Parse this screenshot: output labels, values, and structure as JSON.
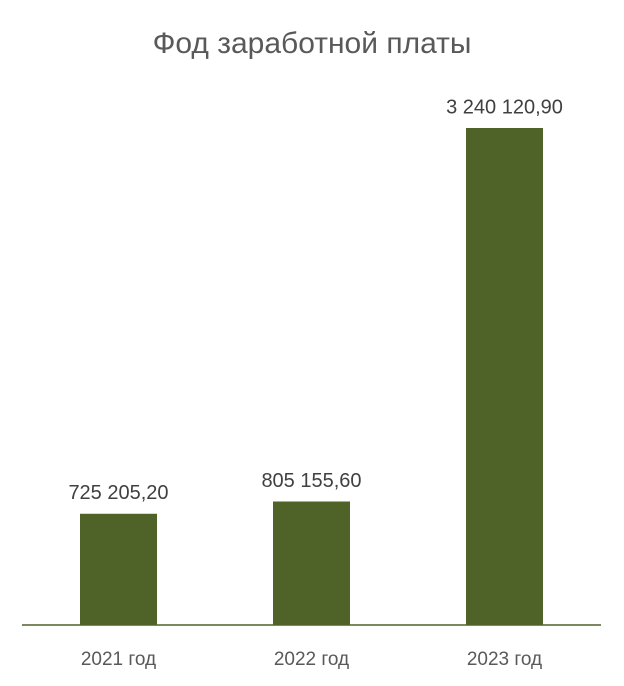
{
  "chart_data": {
    "type": "bar",
    "title": "Фод заработной платы",
    "categories": [
      "2021 год",
      "2022 год",
      "2023 год"
    ],
    "values": [
      725205.2,
      805155.6,
      3240120.9
    ],
    "value_labels": [
      "725 205,20",
      "805 155,60",
      "3 240 120,90"
    ],
    "color": "#4f6228"
  }
}
